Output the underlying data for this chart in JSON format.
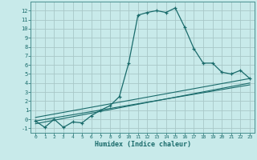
{
  "xlabel": "Humidex (Indice chaleur)",
  "background_color": "#c8eaea",
  "grid_color": "#a8c8c8",
  "line_color": "#1a6b6b",
  "spine_color": "#4a9090",
  "xlim": [
    -0.5,
    23.5
  ],
  "ylim": [
    -1.5,
    13.0
  ],
  "xticks": [
    0,
    1,
    2,
    3,
    4,
    5,
    6,
    7,
    8,
    9,
    10,
    11,
    12,
    13,
    14,
    15,
    16,
    17,
    18,
    19,
    20,
    21,
    22,
    23
  ],
  "yticks": [
    -1,
    0,
    1,
    2,
    3,
    4,
    5,
    6,
    7,
    8,
    9,
    10,
    11,
    12
  ],
  "line1_x": [
    0,
    1,
    2,
    3,
    4,
    5,
    6,
    7,
    8,
    9,
    10,
    11,
    12,
    13,
    14,
    15,
    16,
    17,
    18,
    19,
    20,
    21,
    22,
    23
  ],
  "line1_y": [
    -0.2,
    -0.9,
    0.0,
    -0.9,
    -0.3,
    -0.4,
    0.4,
    1.0,
    1.5,
    2.5,
    6.2,
    11.5,
    11.8,
    12.0,
    11.8,
    12.3,
    10.2,
    7.8,
    6.2,
    6.2,
    5.2,
    5.0,
    5.4,
    4.5
  ],
  "line2_x": [
    0,
    23
  ],
  "line2_y": [
    0.2,
    4.5
  ],
  "line3_x": [
    0,
    23
  ],
  "line3_y": [
    -0.5,
    4.0
  ],
  "line4_x": [
    0,
    23
  ],
  "line4_y": [
    -0.2,
    3.8
  ]
}
